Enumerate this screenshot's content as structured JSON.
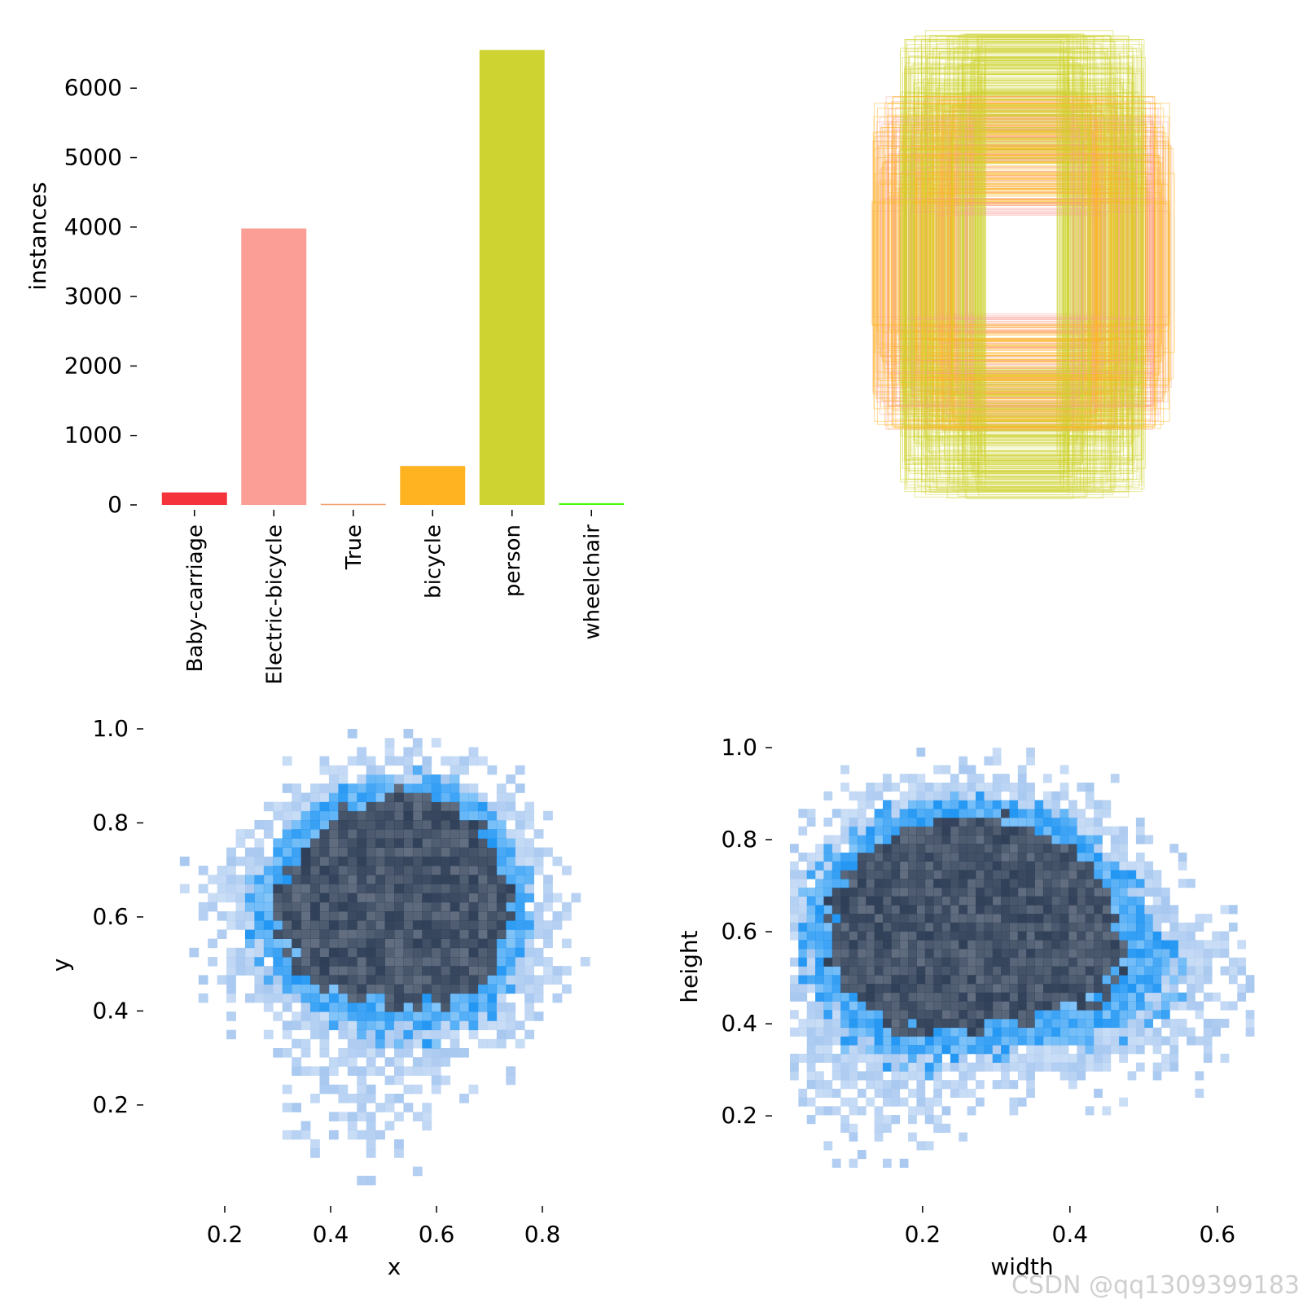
{
  "chart_data": [
    {
      "type": "bar",
      "ylabel": "instances",
      "xlabel": "",
      "ylim": [
        0,
        6800
      ],
      "yticks": [
        "0",
        "1000",
        "2000",
        "3000",
        "4000",
        "5000",
        "6000"
      ],
      "yticks_values": [
        0,
        1000,
        2000,
        3000,
        4000,
        5000,
        6000
      ],
      "categories": [
        "Baby-carriage",
        "Electric-bicycle",
        "True",
        "bicycle",
        "person",
        "wheelchair"
      ],
      "values": [
        180,
        3980,
        15,
        560,
        6550,
        25
      ],
      "colors": [
        "#f4333a",
        "#fb9e96",
        "#f0a070",
        "#ffb321",
        "#cfd331",
        "#48f90a"
      ]
    },
    {
      "type": "box-overlay",
      "xlabel": "",
      "ylabel": "",
      "description_colors": [
        "#cfd331",
        "#ffb321",
        "#fb9e96"
      ]
    },
    {
      "type": "heatmap",
      "xlabel": "x",
      "ylabel": "y",
      "xlim": [
        0.08,
        0.96
      ],
      "ylim": [
        0.03,
        1.0
      ],
      "xticks": [
        "0.2",
        "0.4",
        "0.6",
        "0.8"
      ],
      "xticks_values": [
        0.2,
        0.4,
        0.6,
        0.8
      ],
      "yticks": [
        "0.2",
        "0.4",
        "0.6",
        "0.8",
        "1.0"
      ],
      "yticks_values": [
        0.2,
        0.4,
        0.6,
        0.8,
        1.0
      ],
      "density_centers": [
        [
          0.5,
          0.7,
          1.0
        ],
        [
          0.6,
          0.68,
          1.0
        ],
        [
          0.45,
          0.55,
          0.6
        ],
        [
          0.65,
          0.5,
          0.6
        ],
        [
          0.3,
          0.6,
          0.45
        ],
        [
          0.45,
          0.2,
          0.3
        ]
      ]
    },
    {
      "type": "heatmap",
      "xlabel": "width",
      "ylabel": "height",
      "xlim": [
        0.02,
        0.65
      ],
      "ylim": [
        0.05,
        1.0
      ],
      "xticks": [
        "0.2",
        "0.4",
        "0.6"
      ],
      "xticks_values": [
        0.2,
        0.4,
        0.6
      ],
      "yticks": [
        "0.2",
        "0.4",
        "0.6",
        "0.8",
        "1.0"
      ],
      "yticks_values": [
        0.2,
        0.4,
        0.6,
        0.8,
        1.0
      ],
      "density_centers": [
        [
          0.24,
          0.65,
          1.0
        ],
        [
          0.2,
          0.55,
          0.8
        ],
        [
          0.28,
          0.72,
          0.8
        ],
        [
          0.4,
          0.55,
          0.5
        ],
        [
          0.5,
          0.45,
          0.35
        ],
        [
          0.15,
          0.3,
          0.35
        ]
      ]
    }
  ],
  "colors": {
    "hist_light": "#a8c8f0",
    "hist_mid": "#2196f3",
    "hist_dark": "#2f3f57"
  },
  "watermark": "CSDN @qq1309399183"
}
